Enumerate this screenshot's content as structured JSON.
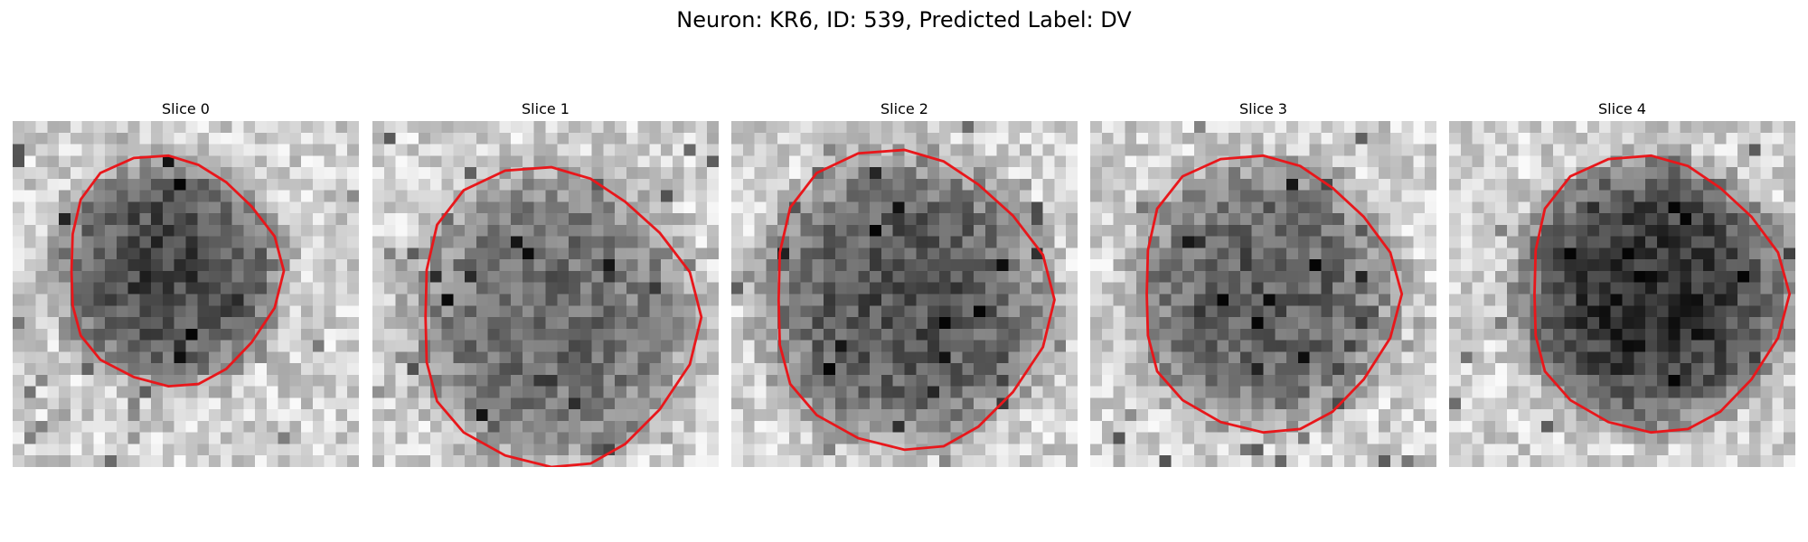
{
  "figure": {
    "title": "Neuron: KR6, ID: 539, Predicted Label: DV"
  },
  "panels": [
    {
      "label": "Slice 0",
      "seed": 11,
      "cx": 13.5,
      "cy": 13.0,
      "r": 10,
      "darkness": 0.55,
      "contour_color": "#e8171b"
    },
    {
      "label": "Slice 1",
      "seed": 23,
      "cx": 15.5,
      "cy": 17.0,
      "r": 13,
      "darkness": 0.4,
      "contour_color": "#e8171b"
    },
    {
      "label": "Slice 2",
      "seed": 37,
      "cx": 15.0,
      "cy": 15.5,
      "r": 13,
      "darkness": 0.5,
      "contour_color": "#e8171b"
    },
    {
      "label": "Slice 3",
      "seed": 41,
      "cx": 15.0,
      "cy": 15.0,
      "r": 12,
      "darkness": 0.45,
      "contour_color": "#e8171b"
    },
    {
      "label": "Slice 4",
      "seed": 53,
      "cx": 17.5,
      "cy": 15.0,
      "r": 12,
      "darkness": 0.65,
      "contour_color": "#e8171b"
    }
  ]
}
